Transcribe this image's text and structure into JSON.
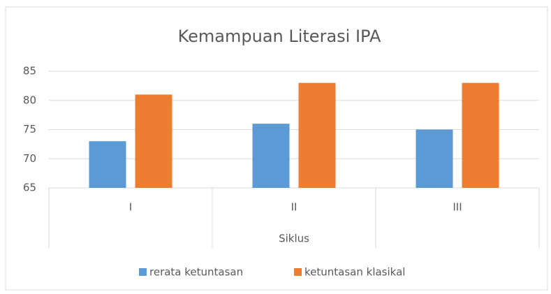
{
  "chart_data": {
    "type": "bar",
    "title": "Kemampuan Literasi IPA",
    "categories": [
      "I",
      "II",
      "III"
    ],
    "x_label": "Siklus",
    "series": [
      {
        "name": "rerata ketuntasan",
        "color": "#5b9bd5",
        "values": [
          73,
          76,
          75
        ]
      },
      {
        "name": "ketuntasan klasikal",
        "color": "#ed7d31",
        "values": [
          81,
          83,
          83
        ]
      }
    ],
    "ylim": [
      65,
      85
    ],
    "yticks": [
      65,
      70,
      75,
      80,
      85
    ],
    "grid": true,
    "legend": "bottom"
  }
}
